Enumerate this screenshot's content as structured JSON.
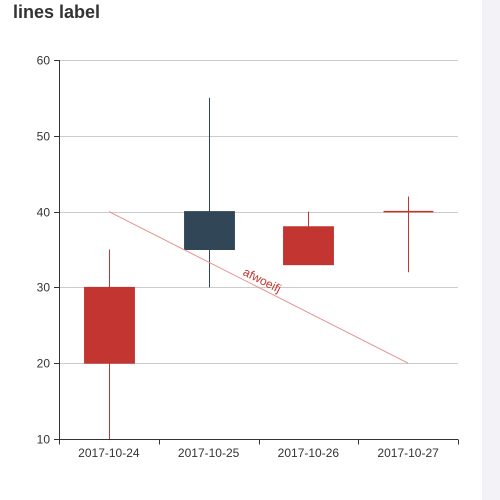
{
  "chart_data": {
    "type": "candlestick",
    "title": "lines label",
    "xlabel": "",
    "ylabel": "",
    "categories": [
      "2017-10-24",
      "2017-10-25",
      "2017-10-26",
      "2017-10-27"
    ],
    "candles": [
      {
        "open": 20,
        "close": 30,
        "low": 10,
        "high": 35
      },
      {
        "open": 40,
        "close": 35,
        "low": 30,
        "high": 55
      },
      {
        "open": 33,
        "close": 38,
        "low": 33,
        "high": 40
      },
      {
        "open": 40,
        "close": 40,
        "low": 32,
        "high": 42
      }
    ],
    "ylim": [
      10,
      60
    ],
    "yticks": [
      10,
      20,
      30,
      40,
      50,
      60
    ],
    "grid": true,
    "markline": {
      "label": "afwoeifj",
      "from": {
        "x": "2017-10-24",
        "y": 40
      },
      "to": {
        "x": "2017-10-27",
        "y": 20
      }
    },
    "colors": {
      "rising": "#c23531",
      "falling": "#314656",
      "markline": "#e4938f",
      "label": "#c23531",
      "grid": "#cccccc",
      "axis": "#333333"
    }
  }
}
